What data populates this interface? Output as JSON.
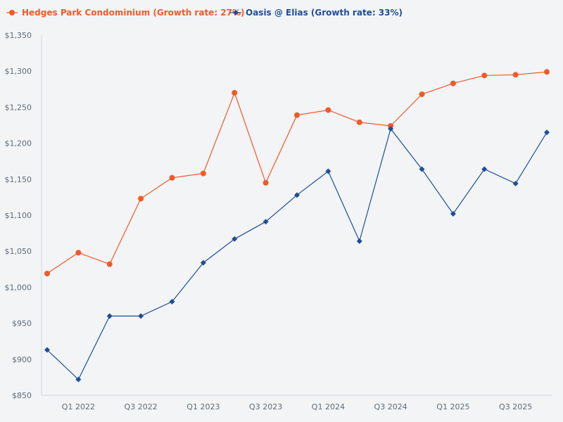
{
  "chart_data": {
    "type": "line",
    "categories": [
      "Q4 2021",
      "Q1 2022",
      "Q2 2022",
      "Q3 2022",
      "Q4 2022",
      "Q1 2023",
      "Q2 2023",
      "Q3 2023",
      "Q4 2023",
      "Q1 2024",
      "Q2 2024",
      "Q3 2024",
      "Q4 2024",
      "Q1 2025",
      "Q2 2025",
      "Q3 2025",
      "Q4 2025"
    ],
    "xtick_labels": [
      "",
      "Q1 2022",
      "",
      "Q3 2022",
      "",
      "Q1 2023",
      "",
      "Q3 2023",
      "",
      "Q1 2024",
      "",
      "Q3 2024",
      "",
      "Q1 2025",
      "",
      "Q3 2025",
      ""
    ],
    "series": [
      {
        "name": "Hedges Park Condominium (Growth rate: 27%)",
        "color": "#f05a28",
        "marker": "circle",
        "values": [
          1019,
          1048,
          1032,
          1123,
          1152,
          1158,
          1270,
          1145,
          1239,
          1246,
          1229,
          1224,
          1268,
          1283,
          1294,
          1295,
          1299
        ]
      },
      {
        "name": "Oasis @ Elias (Growth rate: 33%)",
        "color": "#1f4e96",
        "marker": "diamond",
        "values": [
          913,
          872,
          960,
          960,
          980,
          1034,
          1067,
          1091,
          1128,
          1161,
          1064,
          1220,
          1164,
          1102,
          1164,
          1144,
          1215
        ]
      }
    ],
    "yticks": [
      850,
      900,
      950,
      1000,
      1050,
      1100,
      1150,
      1200,
      1250,
      1300,
      1350
    ],
    "ytick_labels": [
      "$850",
      "$900",
      "$950",
      "$1,000",
      "$1,050",
      "$1,100",
      "$1,150",
      "$1,200",
      "$1,250",
      "$1,300",
      "$1,350"
    ],
    "ylim": [
      850,
      1350
    ],
    "title": "",
    "xlabel": "",
    "ylabel": "",
    "legend_position": "top-left",
    "grid": false
  }
}
